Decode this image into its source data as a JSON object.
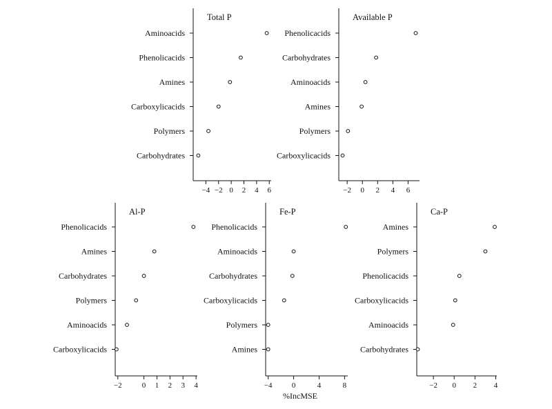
{
  "chart_data": {
    "type": "dot",
    "x_axis_label": "%IncMSE",
    "panels": [
      {
        "title": "Total P",
        "categories": [
          "Aminoacids",
          "Phenolicacids",
          "Amines",
          "Carboxylicacids",
          "Polymers",
          "Carbohydrates"
        ],
        "values": [
          5.6,
          1.5,
          -0.2,
          -2.0,
          -3.6,
          -5.2
        ],
        "xticks": [
          -4,
          -2,
          0,
          2,
          4,
          6
        ],
        "xlim": [
          -6,
          6.3
        ]
      },
      {
        "title": "Available P",
        "categories": [
          "Phenolicacids",
          "Carbohydrates",
          "Aminoacids",
          "Amines",
          "Polymers",
          "Carboxylicacids"
        ],
        "values": [
          7.0,
          1.8,
          0.4,
          -0.1,
          -1.9,
          -2.6
        ],
        "xticks": [
          -2,
          0,
          2,
          4,
          6
        ],
        "xlim": [
          -3.1,
          7.5
        ]
      },
      {
        "title": "Al-P",
        "categories": [
          "Phenolicacids",
          "Amines",
          "Carbohydrates",
          "Polymers",
          "Aminoacids",
          "Carboxylicacids"
        ],
        "values": [
          3.8,
          0.8,
          0.0,
          -0.6,
          -1.3,
          -2.1
        ],
        "xticks": [
          -2,
          0,
          1,
          2,
          3,
          4
        ],
        "xlim": [
          -2.2,
          4.1
        ]
      },
      {
        "title": "Fe-P",
        "categories": [
          "Phenolicacids",
          "Aminoacids",
          "Carbohydrates",
          "Carboxylicacids",
          "Polymers",
          "Amines"
        ],
        "values": [
          8.2,
          0.0,
          -0.2,
          -1.5,
          -4.0,
          -4.0
        ],
        "xticks": [
          -4,
          0,
          4,
          8
        ],
        "xlim": [
          -4.4,
          8.5
        ]
      },
      {
        "title": "Ca-P",
        "categories": [
          "Amines",
          "Polymers",
          "Phenolicacids",
          "Carboxylicacids",
          "Aminoacids",
          "Carbohydrates"
        ],
        "values": [
          3.9,
          3.0,
          0.5,
          0.1,
          -0.1,
          -3.5
        ],
        "xticks": [
          -2,
          0,
          2,
          4
        ],
        "xlim": [
          -3.6,
          4.1
        ]
      }
    ]
  }
}
